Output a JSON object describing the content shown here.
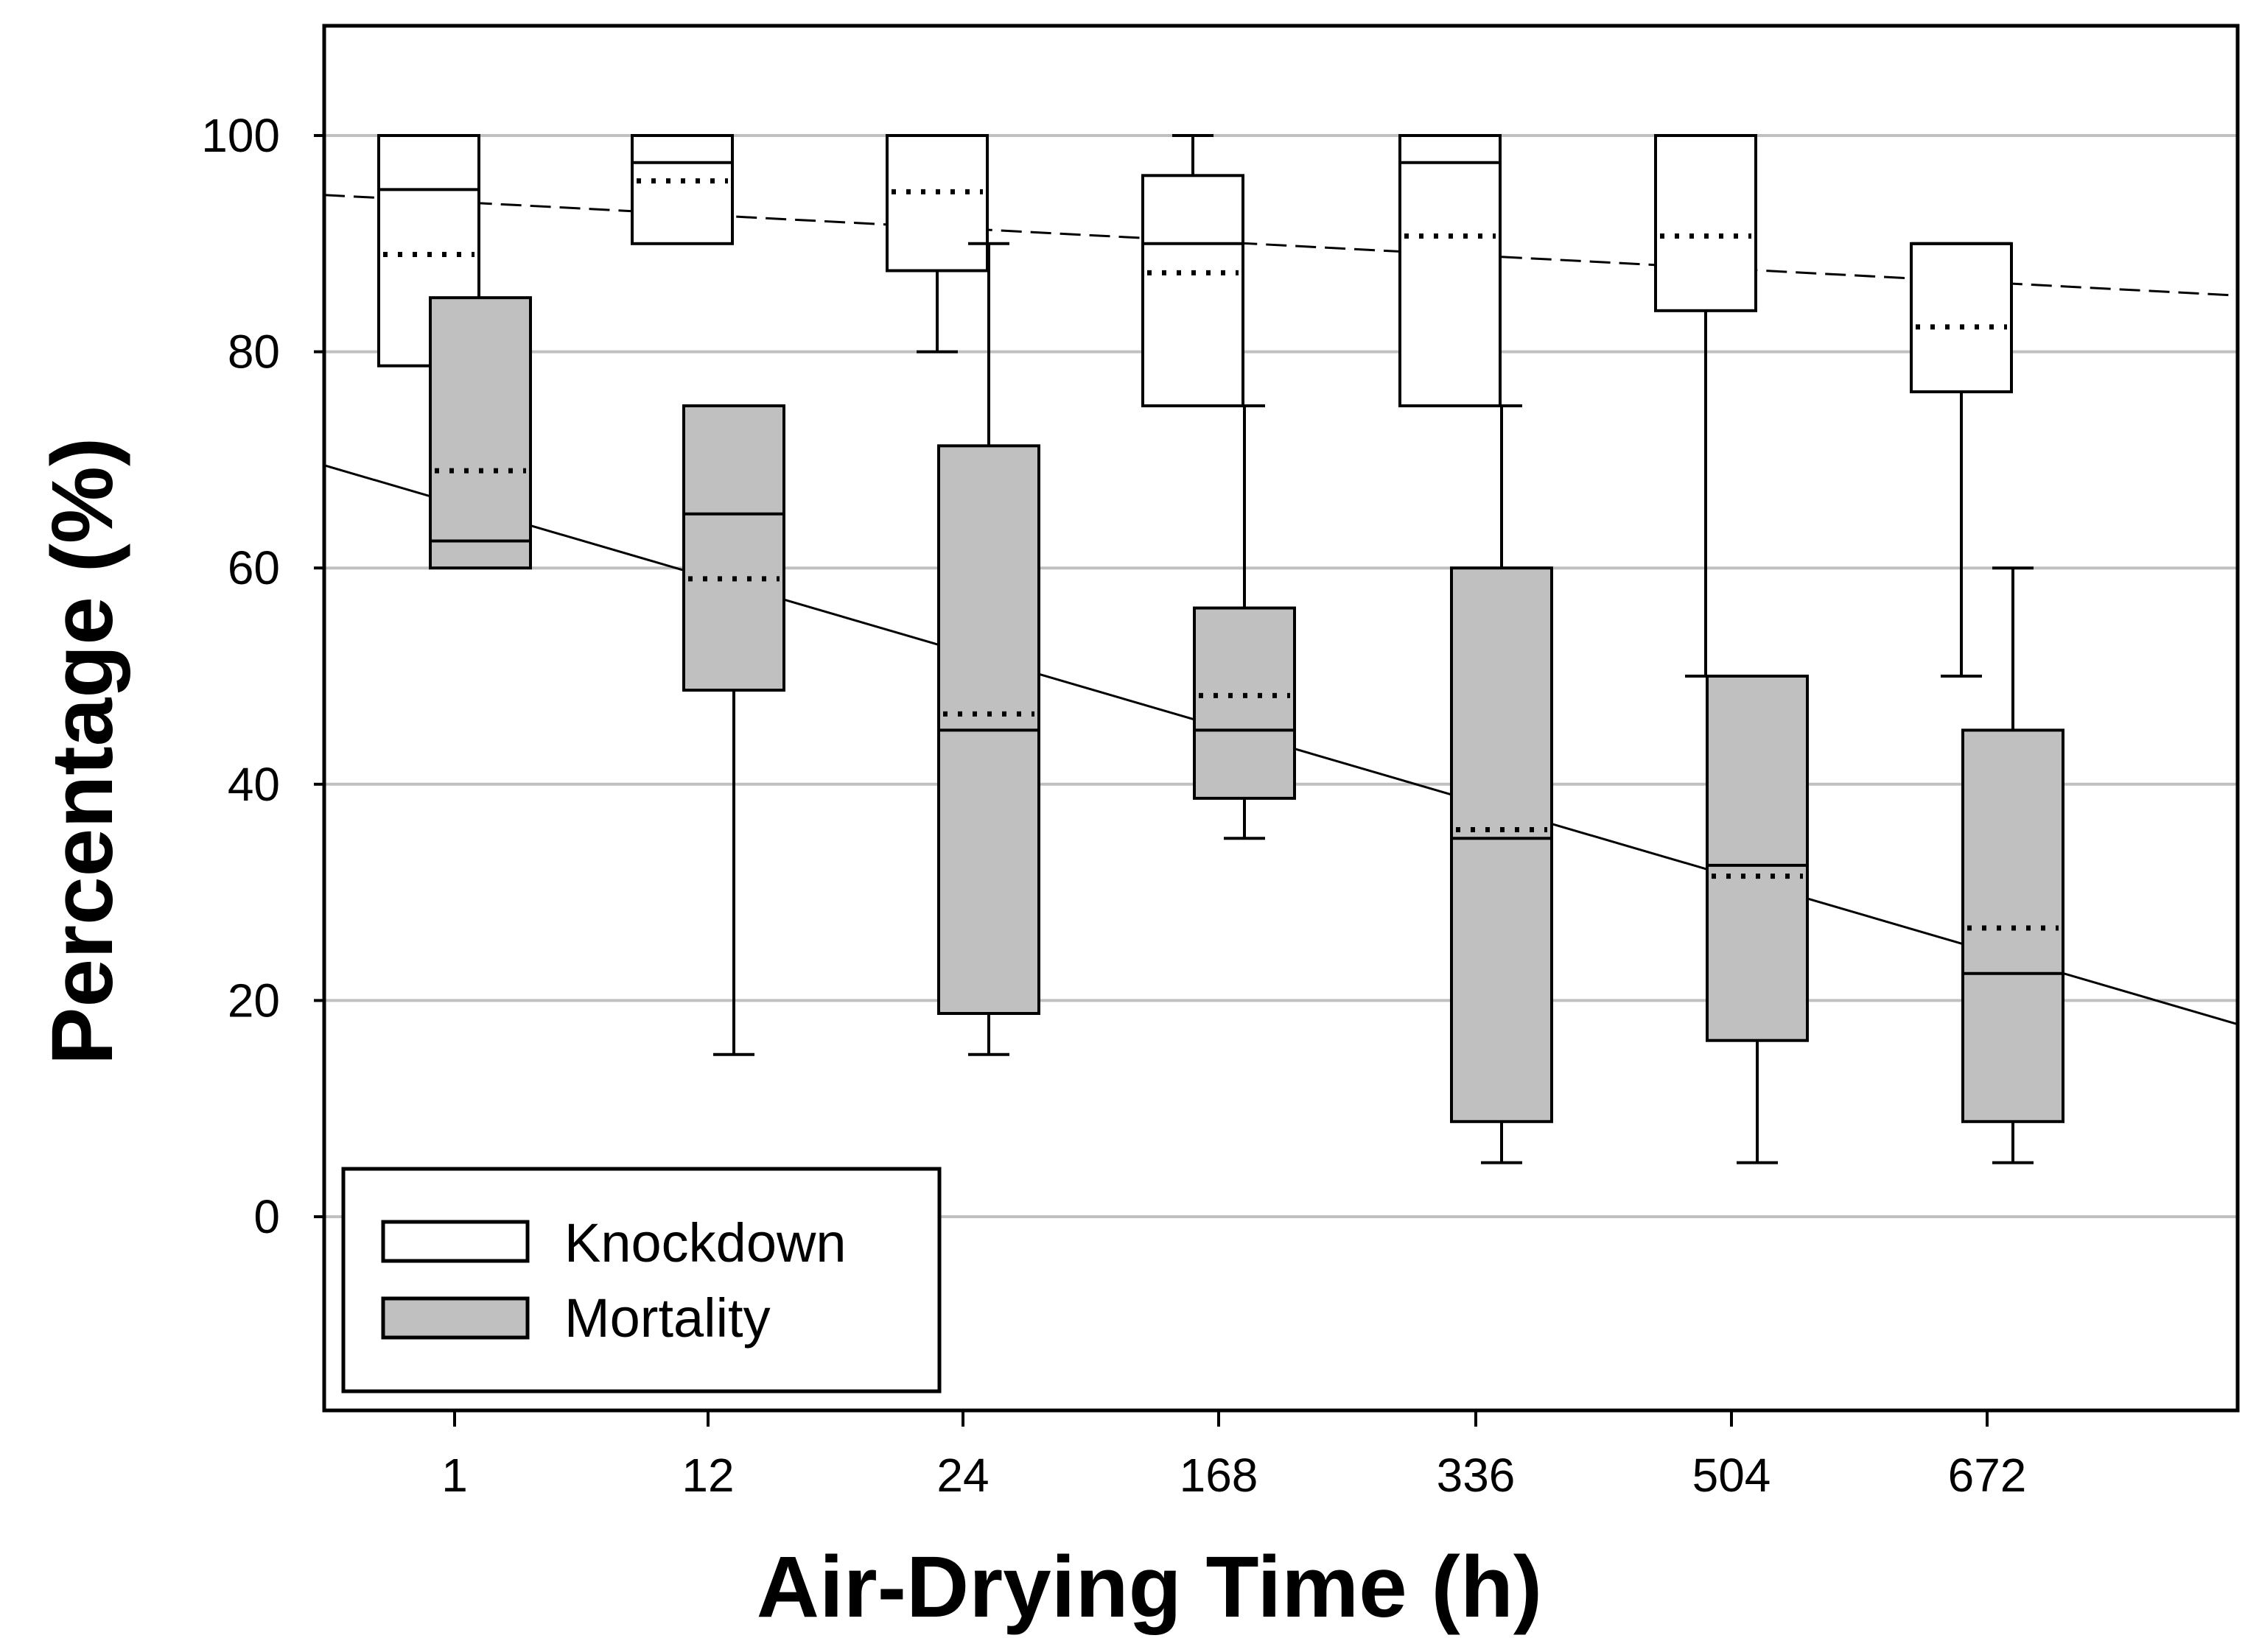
{
  "chart_data": {
    "type": "boxplot",
    "title": "",
    "xlabel": "Air-Drying Time (h)",
    "ylabel": "Percentage (%)",
    "ylim": [
      -18,
      110
    ],
    "yticks": [
      0,
      20,
      40,
      60,
      80,
      100
    ],
    "grid": "horizontal",
    "categories": [
      "1",
      "12",
      "24",
      "168",
      "336",
      "504",
      "672"
    ],
    "series": [
      {
        "name": "Knockdown",
        "fill": "#ffffff",
        "boxes": [
          {
            "whisker_low": 78.7,
            "q1": 78.7,
            "median": 95,
            "q3": 100,
            "whisker_high": 100,
            "mean": 89
          },
          {
            "whisker_low": 90,
            "q1": 90,
            "median": 97.5,
            "q3": 100,
            "whisker_high": 100,
            "mean": 95.8
          },
          {
            "whisker_low": 80,
            "q1": 87.5,
            "median": 100,
            "q3": 100,
            "whisker_high": 100,
            "mean": 94.8
          },
          {
            "whisker_low": 75,
            "q1": 75,
            "median": 90,
            "q3": 96.3,
            "whisker_high": 100,
            "mean": 87.3
          },
          {
            "whisker_low": 75,
            "q1": 75,
            "median": 97.5,
            "q3": 100,
            "whisker_high": 100,
            "mean": 90.7
          },
          {
            "whisker_low": 50,
            "q1": 83.8,
            "median": 100,
            "q3": 100,
            "whisker_high": 100,
            "mean": 90.7
          },
          {
            "whisker_low": 50,
            "q1": 76.3,
            "median": 90,
            "q3": 90,
            "whisker_high": 90,
            "mean": 82.3
          }
        ],
        "trend": {
          "y_at_left": 94.5,
          "y_at_right": 85.2,
          "style": "dashed"
        }
      },
      {
        "name": "Mortality",
        "fill": "#c0c0c0",
        "boxes": [
          {
            "whisker_low": 60,
            "q1": 60,
            "median": 62.5,
            "q3": 85,
            "whisker_high": 85,
            "mean": 69
          },
          {
            "whisker_low": 15,
            "q1": 48.7,
            "median": 65,
            "q3": 75,
            "whisker_high": 75,
            "mean": 59
          },
          {
            "whisker_low": 15,
            "q1": 18.8,
            "median": 45,
            "q3": 71.3,
            "whisker_high": 90,
            "mean": 46.5
          },
          {
            "whisker_low": 35,
            "q1": 38.7,
            "median": 45,
            "q3": 56.3,
            "whisker_high": 75,
            "mean": 48.2
          },
          {
            "whisker_low": 5,
            "q1": 8.8,
            "median": 35,
            "q3": 60,
            "whisker_high": 75,
            "mean": 35.8
          },
          {
            "whisker_low": 5,
            "q1": 16.3,
            "median": 32.5,
            "q3": 50,
            "whisker_high": 50,
            "mean": 31.5
          },
          {
            "whisker_low": 5,
            "q1": 8.8,
            "median": 22.5,
            "q3": 45,
            "whisker_high": 60,
            "mean": 26.7
          }
        ],
        "trend": {
          "y_at_left": 69.5,
          "y_at_right": 17.8,
          "style": "solid"
        }
      }
    ],
    "legend": {
      "position": "bottom-left",
      "entries": [
        "Knockdown",
        "Mortality"
      ]
    }
  }
}
